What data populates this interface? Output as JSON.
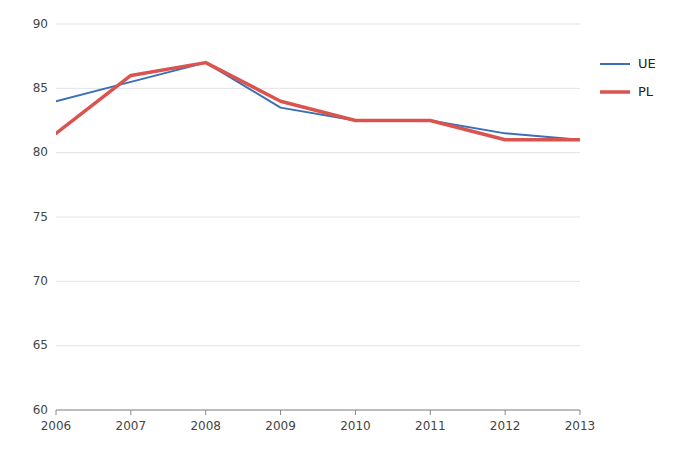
{
  "chart_data": {
    "type": "line",
    "x": [
      2006,
      2007,
      2008,
      2009,
      2010,
      2011,
      2012,
      2013
    ],
    "series": [
      {
        "name": "UE",
        "values": [
          84.0,
          85.5,
          87.0,
          83.5,
          82.5,
          82.5,
          81.5,
          81.0
        ]
      },
      {
        "name": "PL",
        "values": [
          81.5,
          86.0,
          87.0,
          84.0,
          82.5,
          82.5,
          81.0,
          81.0
        ]
      }
    ],
    "xlim": [
      2006,
      2013
    ],
    "xticks": [
      2006,
      2007,
      2008,
      2009,
      2010,
      2011,
      2012,
      2013
    ],
    "ylim": [
      60,
      90
    ],
    "yticks": [
      60,
      65,
      70,
      75,
      80,
      85,
      90
    ],
    "grid": true,
    "legend": "right"
  }
}
